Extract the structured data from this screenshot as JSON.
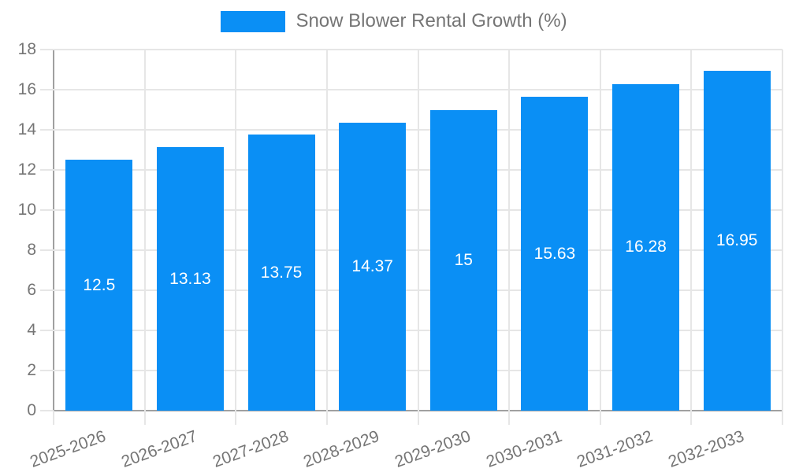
{
  "legend": {
    "label": "Snow Blower Rental Growth (%)"
  },
  "chart_data": {
    "type": "bar",
    "title": "Snow Blower Rental Growth (%)",
    "series_name": "Snow Blower Rental Growth (%)",
    "categories": [
      "2025-2026",
      "2026-2027",
      "2027-2028",
      "2028-2029",
      "2029-2030",
      "2030-2031",
      "2031-2032",
      "2032-2033"
    ],
    "values": [
      12.5,
      13.13,
      13.75,
      14.37,
      15,
      15.63,
      16.28,
      16.95
    ],
    "xlabel": "",
    "ylabel": "",
    "ylim": [
      0,
      18
    ],
    "ytick_step": 2,
    "grid": true,
    "legend_position": "top",
    "colors": {
      "bar": "#0a8ff5",
      "grid": "#e6e6e6",
      "axis": "#a0a0a0",
      "tick_text": "#757575",
      "value_label": "#ffffff"
    }
  }
}
